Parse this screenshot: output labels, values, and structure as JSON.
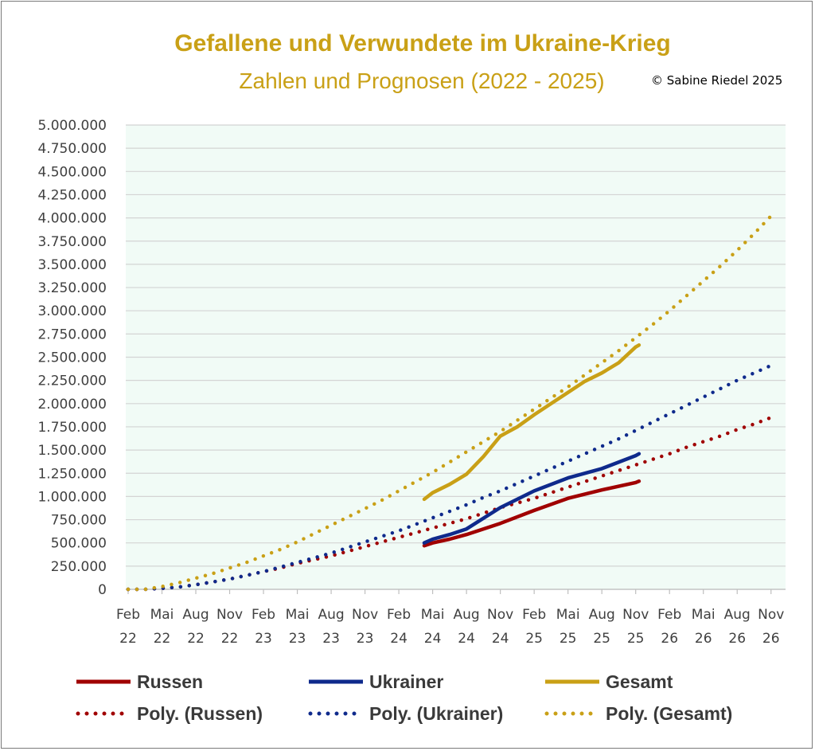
{
  "chart_data": {
    "type": "line",
    "title": "Gefallene und Verwundete im Ukraine-Krieg",
    "subtitle": "Zahlen und Prognosen (2022 - 2025)",
    "copyright": "©  Sabine Riedel 2025",
    "ylim": [
      0,
      5000000
    ],
    "yticks": [
      "0",
      "250.000",
      "500.000",
      "750.000",
      "1.000.000",
      "1.250.000",
      "1.500.000",
      "1.750.000",
      "2.000.000",
      "2.250.000",
      "2.500.000",
      "2.750.000",
      "3.000.000",
      "3.250.000",
      "3.500.000",
      "3.750.000",
      "4.000.000",
      "4.250.000",
      "4.500.000",
      "4.750.000",
      "5.000.000"
    ],
    "ytick_values": [
      0,
      250000,
      500000,
      750000,
      1000000,
      1250000,
      1500000,
      1750000,
      2000000,
      2250000,
      2500000,
      2750000,
      3000000,
      3250000,
      3500000,
      3750000,
      4000000,
      4250000,
      4500000,
      4750000,
      5000000
    ],
    "categories": [
      {
        "month": "Feb",
        "year": "22"
      },
      {
        "month": "Mai",
        "year": "22"
      },
      {
        "month": "Aug",
        "year": "22"
      },
      {
        "month": "Nov",
        "year": "22"
      },
      {
        "month": "Feb",
        "year": "23"
      },
      {
        "month": "Mai",
        "year": "23"
      },
      {
        "month": "Aug",
        "year": "23"
      },
      {
        "month": "Nov",
        "year": "23"
      },
      {
        "month": "Feb",
        "year": "24"
      },
      {
        "month": "Mai",
        "year": "24"
      },
      {
        "month": "Aug",
        "year": "24"
      },
      {
        "month": "Nov",
        "year": "24"
      },
      {
        "month": "Feb",
        "year": "25"
      },
      {
        "month": "Mai",
        "year": "25"
      },
      {
        "month": "Aug",
        "year": "25"
      },
      {
        "month": "Nov",
        "year": "25"
      },
      {
        "month": "Feb",
        "year": "26"
      },
      {
        "month": "Mai",
        "year": "26"
      },
      {
        "month": "Aug",
        "year": "26"
      },
      {
        "month": "Nov",
        "year": "26"
      }
    ],
    "series": [
      {
        "name": "Russen",
        "color": "#a00000",
        "style": "solid",
        "x": [
          8.75,
          9,
          9.5,
          10,
          11,
          12,
          13,
          14,
          15,
          15.1
        ],
        "values": [
          470000,
          500000,
          540000,
          590000,
          710000,
          850000,
          980000,
          1070000,
          1150000,
          1165000
        ]
      },
      {
        "name": "Ukrainer",
        "color": "#0f2a8c",
        "style": "solid",
        "x": [
          8.75,
          9,
          9.5,
          10,
          11,
          12,
          13,
          14,
          15,
          15.1
        ],
        "values": [
          500000,
          540000,
          590000,
          650000,
          880000,
          1060000,
          1200000,
          1300000,
          1440000,
          1460000
        ]
      },
      {
        "name": "Gesamt",
        "color": "#c9a016",
        "style": "solid",
        "x": [
          8.75,
          9,
          9.5,
          10,
          10.5,
          11,
          11.5,
          12,
          12.5,
          13,
          13.5,
          14,
          14.5,
          15,
          15.1
        ],
        "values": [
          970000,
          1040000,
          1130000,
          1240000,
          1430000,
          1650000,
          1750000,
          1880000,
          2000000,
          2120000,
          2240000,
          2330000,
          2440000,
          2610000,
          2630000
        ]
      },
      {
        "name": "Poly. (Russen)",
        "color": "#a00000",
        "style": "dotted",
        "x": [
          0,
          0.5,
          1,
          1.5,
          2,
          2.5,
          3,
          3.5,
          4,
          4.5,
          5,
          5.5,
          6,
          6.5,
          7,
          7.5,
          8,
          8.5,
          9,
          9.5,
          10,
          10.5,
          11,
          11.5,
          12,
          12.5,
          13,
          13.5,
          14,
          14.5,
          15,
          15.5,
          16,
          16.5,
          17,
          17.5,
          18,
          18.5,
          19
        ],
        "values": [
          0,
          0,
          10000,
          25000,
          50000,
          80000,
          110000,
          150000,
          190000,
          230000,
          280000,
          320000,
          360000,
          410000,
          460000,
          510000,
          560000,
          610000,
          660000,
          710000,
          760000,
          820000,
          880000,
          930000,
          980000,
          1040000,
          1100000,
          1160000,
          1220000,
          1280000,
          1340000,
          1400000,
          1460000,
          1530000,
          1590000,
          1650000,
          1720000,
          1780000,
          1850000
        ]
      },
      {
        "name": "Poly. (Ukrainer)",
        "color": "#0f2a8c",
        "style": "dotted",
        "x": [
          0,
          0.5,
          1,
          1.5,
          2,
          2.5,
          3,
          3.5,
          4,
          4.5,
          5,
          5.5,
          6,
          6.5,
          7,
          7.5,
          8,
          8.5,
          9,
          9.5,
          10,
          10.5,
          11,
          11.5,
          12,
          12.5,
          13,
          13.5,
          14,
          14.5,
          15,
          15.5,
          16,
          16.5,
          17,
          17.5,
          18,
          18.5,
          19
        ],
        "values": [
          0,
          0,
          10000,
          25000,
          50000,
          80000,
          110000,
          150000,
          190000,
          240000,
          290000,
          340000,
          390000,
          450000,
          510000,
          570000,
          630000,
          700000,
          770000,
          840000,
          910000,
          990000,
          1060000,
          1140000,
          1220000,
          1300000,
          1380000,
          1460000,
          1540000,
          1620000,
          1710000,
          1800000,
          1890000,
          1980000,
          2070000,
          2160000,
          2250000,
          2330000,
          2410000
        ]
      },
      {
        "name": "Poly. (Gesamt)",
        "color": "#c9a016",
        "style": "dotted",
        "x": [
          0,
          0.5,
          1,
          1.5,
          2,
          2.5,
          3,
          3.5,
          4,
          4.5,
          5,
          5.5,
          6,
          6.5,
          7,
          7.5,
          8,
          8.5,
          9,
          9.5,
          10,
          10.5,
          11,
          11.5,
          12,
          12.5,
          13,
          13.5,
          14,
          14.5,
          15,
          15.5,
          16,
          16.5,
          17,
          17.5,
          18,
          18.5,
          19
        ],
        "values": [
          0,
          0,
          30000,
          70000,
          120000,
          170000,
          230000,
          290000,
          360000,
          430000,
          510000,
          600000,
          690000,
          780000,
          870000,
          960000,
          1060000,
          1160000,
          1260000,
          1370000,
          1480000,
          1590000,
          1700000,
          1820000,
          1940000,
          2060000,
          2180000,
          2310000,
          2440000,
          2570000,
          2710000,
          2850000,
          3000000,
          3160000,
          3320000,
          3480000,
          3650000,
          3830000,
          4020000
        ]
      }
    ]
  },
  "legend": [
    {
      "label": "Russen",
      "color": "#a00000",
      "style": "solid"
    },
    {
      "label": "Ukrainer",
      "color": "#0f2a8c",
      "style": "solid"
    },
    {
      "label": "Gesamt",
      "color": "#c9a016",
      "style": "solid"
    },
    {
      "label": "Poly. (Russen)",
      "color": "#a00000",
      "style": "dotted"
    },
    {
      "label": "Poly. (Ukrainer)",
      "color": "#0f2a8c",
      "style": "dotted"
    },
    {
      "label": "Poly. (Gesamt)",
      "color": "#c9a016",
      "style": "dotted"
    }
  ],
  "colors": {
    "plot_background": "#f1fbf6",
    "gridline": "#d4d4d4",
    "title": "#c9a016"
  }
}
